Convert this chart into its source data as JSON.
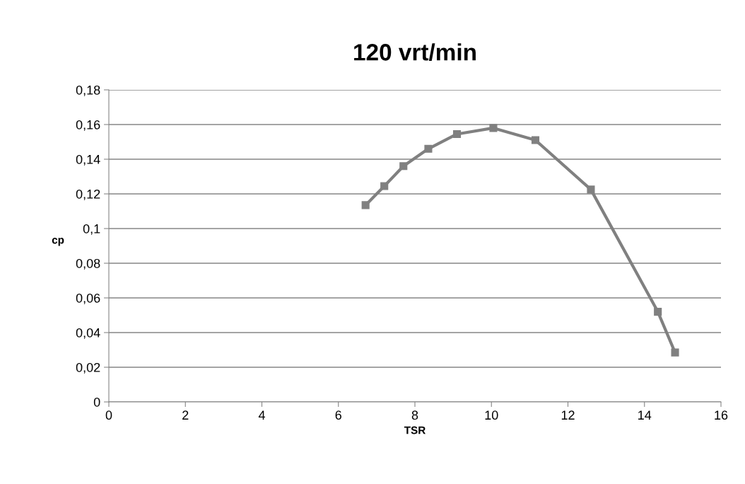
{
  "chart_data": {
    "type": "line",
    "title": "120 vrt/min",
    "xlabel": "TSR",
    "ylabel": "cp",
    "x": [
      6.71,
      7.2,
      7.7,
      8.35,
      9.1,
      10.05,
      11.15,
      12.6,
      14.35,
      14.8
    ],
    "series": [
      {
        "color": "#808080",
        "values": [
          0.1135,
          0.1245,
          0.136,
          0.146,
          0.1545,
          0.158,
          0.151,
          0.1225,
          0.052,
          0.0285
        ]
      }
    ],
    "xlim": [
      0,
      16
    ],
    "xticks": [
      0,
      2,
      4,
      6,
      8,
      10,
      12,
      14,
      16
    ],
    "ylim": [
      0,
      0.18
    ],
    "yticks": [
      0,
      {
        "value": 0.02,
        "label": "0,02"
      },
      {
        "value": 0.04,
        "label": "0,04"
      },
      {
        "value": 0.06,
        "label": "0,06"
      },
      {
        "value": 0.08,
        "label": "0,08"
      },
      {
        "value": 0.1,
        "label": "0,1"
      },
      {
        "value": 0.12,
        "label": "0,12"
      },
      {
        "value": 0.14,
        "label": "0,14"
      },
      {
        "value": 0.16,
        "label": "0,16"
      },
      {
        "value": 0.18,
        "label": "0,18"
      }
    ],
    "grid": "y",
    "marker": "square",
    "line_style": "solid",
    "legend": false
  }
}
